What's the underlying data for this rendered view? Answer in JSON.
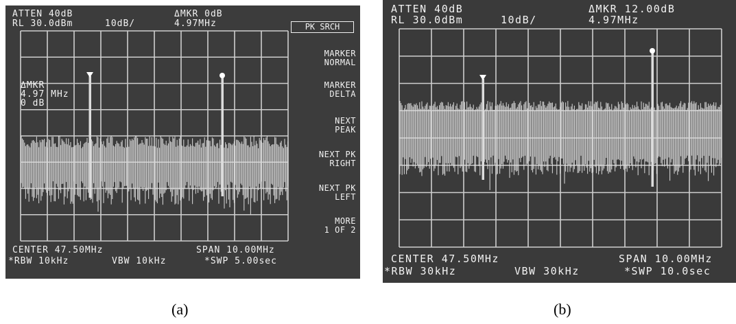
{
  "panel_a": {
    "atten": "ATTEN 40dB",
    "rl": "RL 30.0dBm",
    "scale": "10dB/",
    "delta_mkr": "ΔMKR 0dB",
    "delta_freq": "4.97MHz",
    "marker_readout": [
      "ΔMKR",
      "4.97 MHz",
      "0 dB"
    ],
    "center": "CENTER 47.50MHz",
    "span": "SPAN 10.00MHz",
    "rbw": "*RBW 10kHz",
    "vbw": "VBW 10kHz",
    "swp": "*SWP 5.00sec",
    "softkeys": {
      "pk_srch": "PK SRCH",
      "marker_normal": "MARKER\nNORMAL",
      "marker_delta": "MARKER\nDELTA",
      "next_peak": "NEXT\nPEAK",
      "next_pk_right": "NEXT PK\nRIGHT",
      "next_pk_left": "NEXT PK\nLEFT",
      "more": "MORE\n1 OF 2"
    },
    "caption": "(a)"
  },
  "panel_b": {
    "atten": "ATTEN 40dB",
    "rl": "RL 30.0dBm",
    "scale": "10dB/",
    "delta_mkr": "ΔMKR 12.00dB",
    "delta_freq": "4.97MHz",
    "center": "CENTER 47.50MHz",
    "span": "SPAN 10.00MHz",
    "rbw": "*RBW 30kHz",
    "vbw": "VBW 30kHz",
    "swp": "*SWP 10.0sec",
    "caption": "(b)"
  },
  "colors": {
    "screen_bg": "#3c3c3c",
    "trace": "#dcdcdc",
    "grid": "#cfcfcf",
    "text": "#f2f2f2"
  },
  "icons": {
    "marker": "marker-triangle-icon",
    "delta_marker": "marker-diamond-icon"
  }
}
